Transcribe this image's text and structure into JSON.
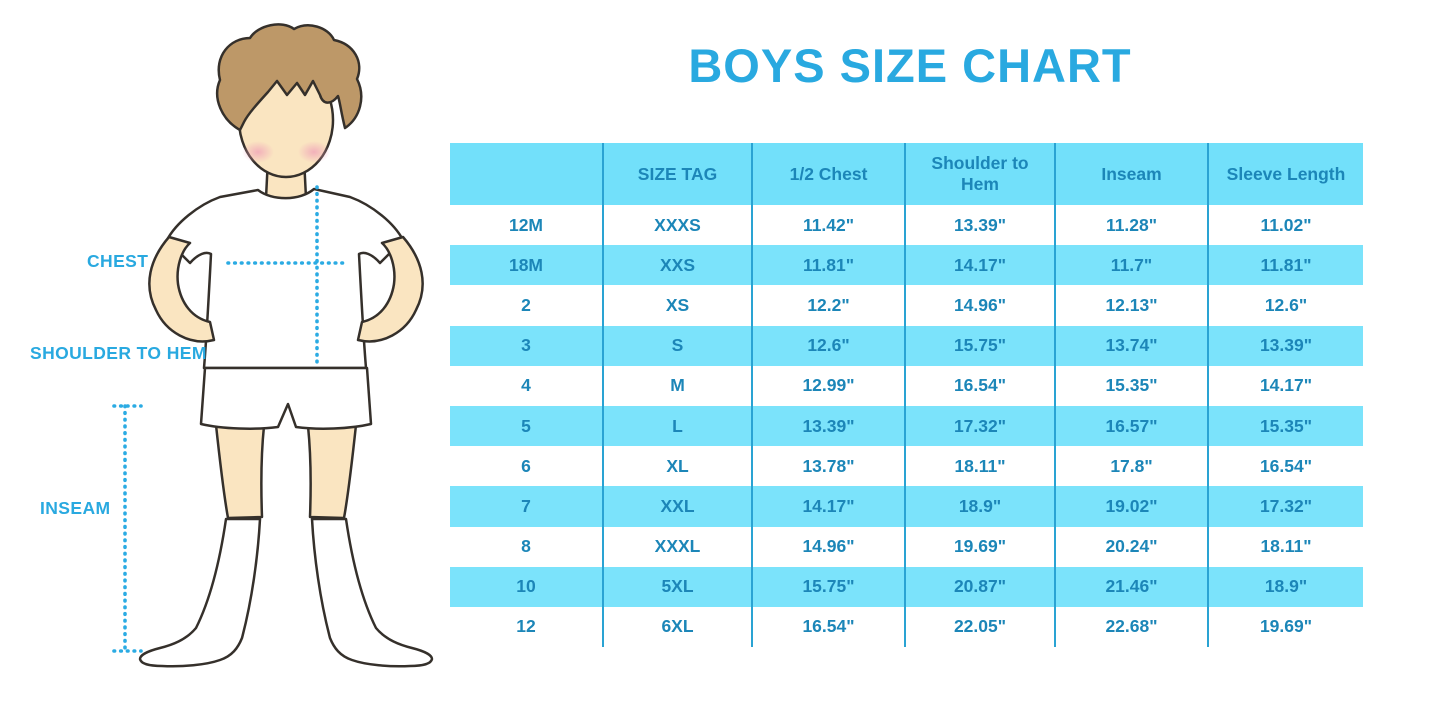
{
  "title": "BOYS SIZE CHART",
  "colors": {
    "title_blue": "#29A9E0",
    "label_blue": "#29A9E0",
    "table_text": "#1C86B8",
    "header_bg": "#72E0FA",
    "row_alt_bg": "#7BE3FB",
    "divider": "#2AA3D3",
    "dotted_line": "#2BABE3",
    "skin": "#FAE5C1",
    "hair": "#BD9868",
    "blush": "#F0A3B8",
    "outline": "#35302B"
  },
  "diagram": {
    "chest_label": "CHEST",
    "shoulder_to_hem_label": "SHOULDER TO HEM",
    "inseam_label": "INSEAM"
  },
  "chart_data": {
    "type": "table",
    "title": "BOYS SIZE CHART",
    "columns": [
      "",
      "SIZE TAG",
      "1/2 Chest",
      "Shoulder to Hem",
      "Inseam",
      "Sleeve Length"
    ],
    "rows": [
      [
        "12M",
        "XXXS",
        "11.42\"",
        "13.39\"",
        "11.28\"",
        "11.02\""
      ],
      [
        "18M",
        "XXS",
        "11.81\"",
        "14.17\"",
        "11.7\"",
        "11.81\""
      ],
      [
        "2",
        "XS",
        "12.2\"",
        "14.96\"",
        "12.13\"",
        "12.6\""
      ],
      [
        "3",
        "S",
        "12.6\"",
        "15.75\"",
        "13.74\"",
        "13.39\""
      ],
      [
        "4",
        "M",
        "12.99\"",
        "16.54\"",
        "15.35\"",
        "14.17\""
      ],
      [
        "5",
        "L",
        "13.39\"",
        "17.32\"",
        "16.57\"",
        "15.35\""
      ],
      [
        "6",
        "XL",
        "13.78\"",
        "18.11\"",
        "17.8\"",
        "16.54\""
      ],
      [
        "7",
        "XXL",
        "14.17\"",
        "18.9\"",
        "19.02\"",
        "17.32\""
      ],
      [
        "8",
        "XXXL",
        "14.96\"",
        "19.69\"",
        "20.24\"",
        "18.11\""
      ],
      [
        "10",
        "5XL",
        "15.75\"",
        "20.87\"",
        "21.46\"",
        "18.9\""
      ],
      [
        "12",
        "6XL",
        "16.54\"",
        "22.05\"",
        "22.68\"",
        "19.69\""
      ]
    ]
  }
}
